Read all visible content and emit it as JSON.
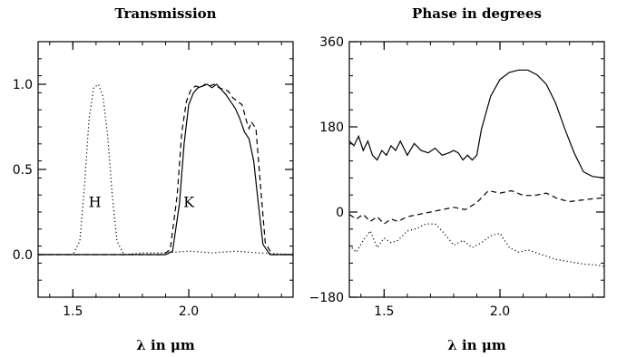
{
  "chart_data": [
    {
      "type": "line",
      "title": "Transmission",
      "xlabel": "λ  in  μm",
      "ylabel": "",
      "xlim": [
        1.35,
        2.45
      ],
      "ylim": [
        -0.25,
        1.25
      ],
      "xticks": [
        1.5,
        2.0
      ],
      "xtick_labels": [
        "1.5",
        "2.0"
      ],
      "yticks": [
        0.0,
        0.5,
        1.0
      ],
      "ytick_labels": [
        "0.0",
        "0.5",
        "1.0"
      ],
      "grid": false,
      "annotations": [
        {
          "text": "H",
          "x": 1.595,
          "y": 0.28
        },
        {
          "text": "K",
          "x": 2.0,
          "y": 0.28
        }
      ],
      "series": [
        {
          "style": "solid",
          "x": [
            1.35,
            1.9,
            1.93,
            1.96,
            1.98,
            2.0,
            2.02,
            2.04,
            2.06,
            2.08,
            2.1,
            2.12,
            2.14,
            2.16,
            2.18,
            2.2,
            2.22,
            2.24,
            2.26,
            2.28,
            2.3,
            2.32,
            2.35,
            2.45
          ],
          "y": [
            0.0,
            0.0,
            0.02,
            0.3,
            0.65,
            0.88,
            0.95,
            0.98,
            0.99,
            1.0,
            0.98,
            1.0,
            0.97,
            0.94,
            0.9,
            0.86,
            0.8,
            0.72,
            0.68,
            0.55,
            0.3,
            0.06,
            0.0,
            0.0
          ]
        },
        {
          "style": "dashed",
          "x": [
            1.35,
            1.89,
            1.92,
            1.95,
            1.97,
            1.99,
            2.01,
            2.03,
            2.05,
            2.07,
            2.09,
            2.11,
            2.13,
            2.15,
            2.17,
            2.19,
            2.21,
            2.23,
            2.25,
            2.26,
            2.27,
            2.29,
            2.31,
            2.33,
            2.36,
            2.45
          ],
          "y": [
            0.0,
            0.0,
            0.03,
            0.35,
            0.72,
            0.9,
            0.97,
            0.99,
            0.98,
            1.0,
            0.99,
            1.0,
            0.98,
            0.97,
            0.96,
            0.92,
            0.9,
            0.88,
            0.78,
            0.74,
            0.78,
            0.74,
            0.4,
            0.07,
            0.0,
            0.0
          ]
        },
        {
          "style": "dotted",
          "x": [
            1.35,
            1.5,
            1.53,
            1.55,
            1.57,
            1.59,
            1.61,
            1.63,
            1.65,
            1.67,
            1.69,
            1.72,
            1.8,
            1.9,
            2.0,
            2.1,
            2.2,
            2.3,
            2.45
          ],
          "y": [
            0.0,
            0.0,
            0.08,
            0.4,
            0.8,
            0.98,
            1.0,
            0.93,
            0.7,
            0.35,
            0.08,
            0.0,
            0.01,
            0.01,
            0.02,
            0.01,
            0.02,
            0.01,
            0.0
          ]
        }
      ]
    },
    {
      "type": "line",
      "title": "Phase in degrees",
      "xlabel": "λ  in  μm",
      "ylabel": "",
      "xlim": [
        1.35,
        2.45
      ],
      "ylim": [
        -180,
        360
      ],
      "xticks": [
        1.5,
        2.0
      ],
      "xtick_labels": [
        "1.5",
        "2.0"
      ],
      "yticks": [
        -180,
        0,
        180,
        360
      ],
      "ytick_labels": [
        "−180",
        "0",
        "180",
        "360"
      ],
      "grid": false,
      "series": [
        {
          "style": "solid",
          "x": [
            1.35,
            1.37,
            1.39,
            1.41,
            1.43,
            1.45,
            1.47,
            1.49,
            1.51,
            1.53,
            1.55,
            1.57,
            1.6,
            1.63,
            1.66,
            1.69,
            1.72,
            1.75,
            1.78,
            1.8,
            1.82,
            1.84,
            1.86,
            1.88,
            1.9,
            1.92,
            1.96,
            2.0,
            2.04,
            2.08,
            2.12,
            2.16,
            2.2,
            2.24,
            2.28,
            2.32,
            2.36,
            2.4,
            2.45
          ],
          "y": [
            150,
            140,
            160,
            130,
            150,
            120,
            110,
            130,
            120,
            140,
            130,
            150,
            120,
            145,
            130,
            125,
            135,
            120,
            125,
            130,
            125,
            110,
            120,
            110,
            120,
            175,
            245,
            280,
            295,
            300,
            300,
            290,
            270,
            230,
            175,
            125,
            85,
            75,
            72
          ]
        },
        {
          "style": "dashed",
          "x": [
            1.35,
            1.38,
            1.41,
            1.44,
            1.47,
            1.5,
            1.53,
            1.56,
            1.6,
            1.65,
            1.7,
            1.75,
            1.8,
            1.85,
            1.9,
            1.95,
            2.0,
            2.05,
            2.1,
            2.15,
            2.2,
            2.25,
            2.3,
            2.35,
            2.4,
            2.45
          ],
          "y": [
            -5,
            -15,
            -5,
            -20,
            -10,
            -25,
            -15,
            -20,
            -10,
            -5,
            0,
            5,
            10,
            5,
            20,
            45,
            40,
            45,
            35,
            35,
            40,
            28,
            22,
            25,
            28,
            30
          ]
        },
        {
          "style": "dotted",
          "x": [
            1.35,
            1.38,
            1.41,
            1.44,
            1.47,
            1.5,
            1.53,
            1.56,
            1.6,
            1.64,
            1.68,
            1.72,
            1.76,
            1.8,
            1.84,
            1.88,
            1.92,
            1.96,
            2.0,
            2.04,
            2.08,
            2.12,
            2.18,
            2.24,
            2.3,
            2.36,
            2.42,
            2.45
          ],
          "y": [
            -70,
            -85,
            -60,
            -40,
            -75,
            -55,
            -65,
            -60,
            -40,
            -35,
            -25,
            -25,
            -45,
            -70,
            -60,
            -75,
            -65,
            -50,
            -45,
            -75,
            -85,
            -80,
            -90,
            -100,
            -105,
            -110,
            -112,
            -115
          ]
        }
      ]
    }
  ]
}
